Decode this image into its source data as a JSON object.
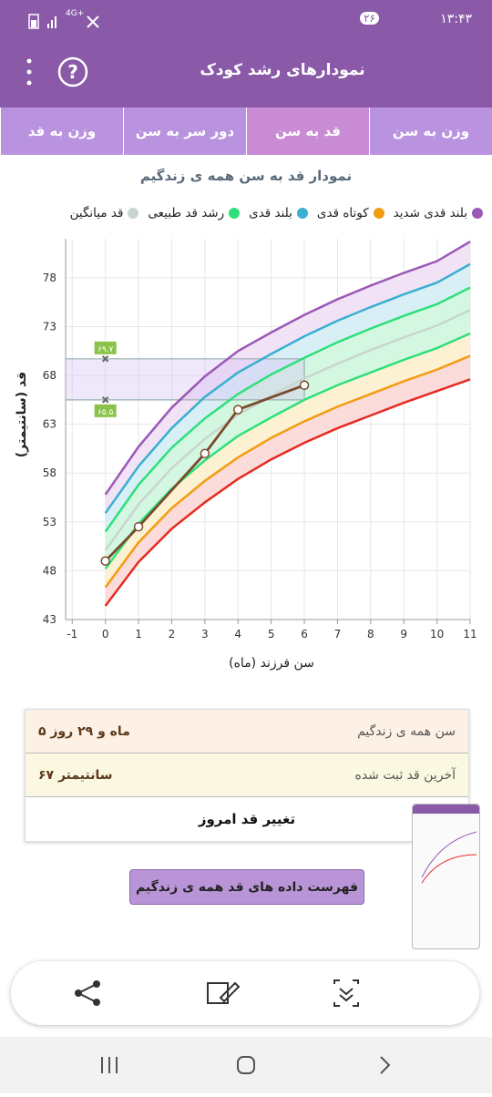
{
  "status_bar": {
    "time": "۱۳:۴۳",
    "badge": "۲۶",
    "network": "4G+"
  },
  "app_bar": {
    "title": "نمودارهای رشد کودک"
  },
  "tabs": [
    "وزن به سن",
    "قد به سن",
    "دور سر به سن",
    "وزن به قد"
  ],
  "active_tab": 1,
  "chart_data": {
    "type": "line",
    "title": "نمودار قد به سن همه ی زندگیم",
    "x_label": "سن فرزند (ماه)",
    "y_label": "قد (سانتیمتر)",
    "x": [
      0,
      1,
      2,
      3,
      4,
      5,
      6,
      7,
      8,
      9,
      10,
      11
    ],
    "xlim": [
      -1.2,
      11
    ],
    "ylim": [
      43,
      82
    ],
    "xticks": [
      -1,
      0,
      1,
      2,
      3,
      4,
      5,
      6,
      7,
      8,
      9,
      10,
      11
    ],
    "yticks": [
      43,
      48,
      53,
      58,
      63,
      68,
      73,
      78
    ],
    "grid": true,
    "series": [
      {
        "name": "بلند قدی شدید",
        "color": "#9b59b6",
        "values": [
          55.8,
          60.7,
          64.7,
          67.9,
          70.5,
          72.4,
          74.2,
          75.8,
          77.2,
          78.5,
          79.7,
          81.7
        ]
      },
      {
        "name": "کوتاه قدی",
        "color": "#f39c12",
        "values": [
          46.3,
          50.9,
          54.4,
          57.2,
          59.6,
          61.6,
          63.3,
          64.8,
          66.1,
          67.4,
          68.6,
          70.0
        ]
      },
      {
        "name": "بلند قدی",
        "color": "#3bafd0",
        "values": [
          53.9,
          58.7,
          62.6,
          65.8,
          68.3,
          70.2,
          72.0,
          73.6,
          75.0,
          76.3,
          77.5,
          79.4
        ]
      },
      {
        "name": "رشد قد طبیعی",
        "color": "#2ee07a",
        "values": [
          52.0,
          56.8,
          60.6,
          63.6,
          66.1,
          68.1,
          69.8,
          71.4,
          72.8,
          74.1,
          75.3,
          77.0
        ]
      },
      {
        "name": "قد میانگین",
        "color": "#c8d5cf",
        "values": [
          50.1,
          54.8,
          58.5,
          61.5,
          64.0,
          65.9,
          67.7,
          69.2,
          70.6,
          71.9,
          73.1,
          74.7
        ]
      },
      {
        "color": "#2ee07a",
        "values": [
          48.2,
          52.8,
          56.4,
          59.3,
          61.8,
          63.7,
          65.5,
          67.0,
          68.3,
          69.6,
          70.8,
          72.3
        ]
      },
      {
        "color": "#e52b22",
        "values": [
          44.4,
          48.9,
          52.3,
          55.0,
          57.4,
          59.4,
          61.1,
          62.6,
          63.9,
          65.2,
          66.4,
          67.6
        ]
      },
      {
        "color": "#7a4a2c",
        "x": [
          0,
          1,
          3,
          4,
          6
        ],
        "values": [
          49,
          52.5,
          60,
          64.5,
          67
        ],
        "markers": true
      }
    ],
    "annotations": [
      {
        "x": 0,
        "y": 69.7,
        "label": "۶۹.۷"
      },
      {
        "x": 0,
        "y": 65.5,
        "label": "۶۵.۵"
      }
    ]
  },
  "summary": {
    "rows": [
      {
        "label": "سن همه ی زندگیم",
        "value": "۵ ماه و ۲۹ روز"
      },
      {
        "label": "آخرین قد ثبت شده",
        "value": "۶۷ سانتیمتر"
      }
    ],
    "action": "تغییر قد امروز"
  },
  "list_button": "فهرست داده های قد همه ی زندگیم"
}
